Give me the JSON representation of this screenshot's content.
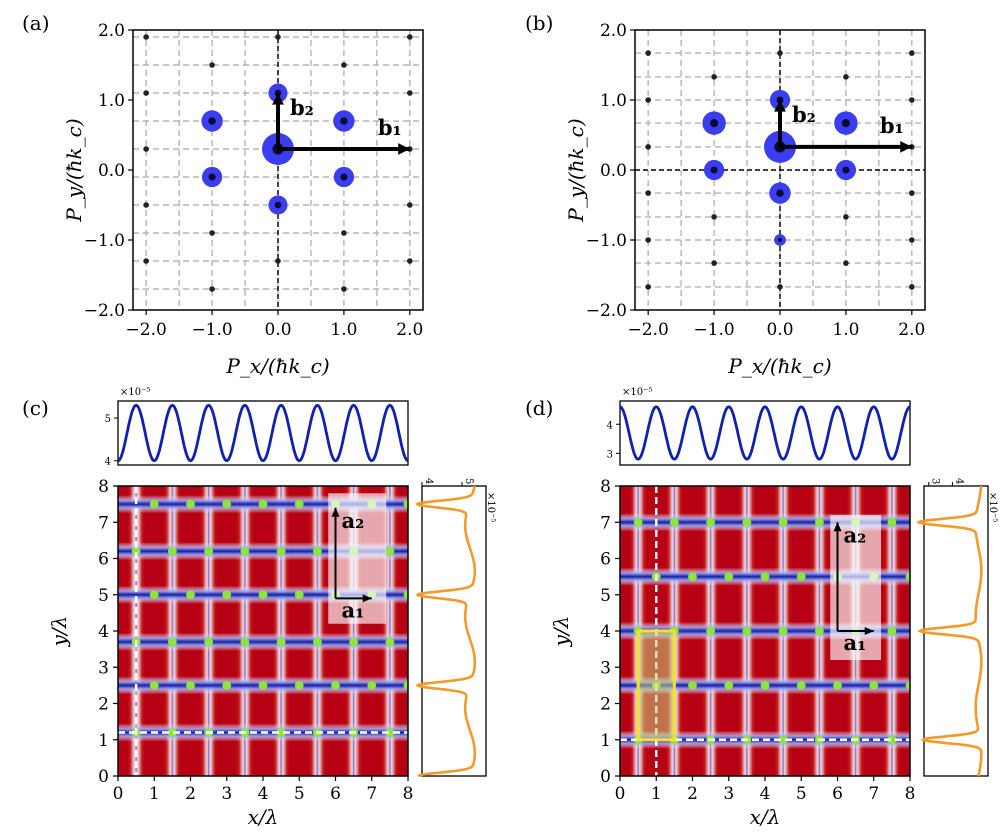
{
  "panels": {
    "a": "(a)",
    "b": "(b)",
    "c": "(c)",
    "d": "(d)"
  },
  "chart_data": [
    {
      "id": "a",
      "type": "scatter",
      "xlabel": "P_x/(ħk_c)",
      "ylabel": "P_y/(ħk_c)",
      "xlim": [
        -2.2,
        2.2
      ],
      "ylim": [
        -2.0,
        2.0
      ],
      "xticks": [
        "−2.0",
        "−1.0",
        "0.0",
        "1.0",
        "2.0"
      ],
      "yticks": [
        "−2.0",
        "−1.0",
        "0.0",
        "1.0",
        "2.0"
      ],
      "grid": true,
      "vectors": [
        {
          "label": "b₂",
          "from": [
            0,
            0.3
          ],
          "to": [
            0,
            1.1
          ]
        },
        {
          "label": "b₁",
          "from": [
            0,
            0.3
          ],
          "to": [
            2,
            0.3
          ]
        }
      ],
      "points": [
        {
          "x": 0,
          "y": 0.3,
          "weight": 1.0
        },
        {
          "x": -1,
          "y": 0.7,
          "weight": 0.35
        },
        {
          "x": 1,
          "y": 0.7,
          "weight": 0.35
        },
        {
          "x": -1,
          "y": -0.1,
          "weight": 0.3
        },
        {
          "x": 1,
          "y": -0.1,
          "weight": 0.3
        },
        {
          "x": 0,
          "y": 1.1,
          "weight": 0.25
        },
        {
          "x": 0,
          "y": -0.5,
          "weight": 0.25
        },
        {
          "x": -1,
          "y": -0.9,
          "weight": 0.12
        },
        {
          "x": 1,
          "y": -0.9,
          "weight": 0.12
        },
        {
          "x": 0,
          "y": -1.3,
          "weight": 0.1
        },
        {
          "x": 0,
          "y": 1.9,
          "weight": 0.08
        },
        {
          "x": -1,
          "y": 1.5,
          "weight": 0.08
        },
        {
          "x": 1,
          "y": 1.5,
          "weight": 0.08
        },
        {
          "x": -1,
          "y": -1.7,
          "weight": 0.08
        },
        {
          "x": 1,
          "y": -1.7,
          "weight": 0.08
        },
        {
          "x": -2,
          "y": 1.9,
          "weight": 0.07
        },
        {
          "x": 2,
          "y": 1.9,
          "weight": 0.07
        },
        {
          "x": -2,
          "y": 1.1,
          "weight": 0.07
        },
        {
          "x": 2,
          "y": 1.1,
          "weight": 0.07
        },
        {
          "x": -2,
          "y": 0.3,
          "weight": 0.07
        },
        {
          "x": 2,
          "y": 0.3,
          "weight": 0.07
        },
        {
          "x": -2,
          "y": -0.5,
          "weight": 0.07
        },
        {
          "x": 2,
          "y": -0.5,
          "weight": 0.07
        },
        {
          "x": -2,
          "y": -1.3,
          "weight": 0.07
        },
        {
          "x": 2,
          "y": -1.3,
          "weight": 0.07
        }
      ]
    },
    {
      "id": "b",
      "type": "scatter",
      "xlabel": "P_x/(ħk_c)",
      "ylabel": "P_y/(ħk_c)",
      "xlim": [
        -2.2,
        2.2
      ],
      "ylim": [
        -2.0,
        2.0
      ],
      "xticks": [
        "−2.0",
        "−1.0",
        "0.0",
        "1.0",
        "2.0"
      ],
      "yticks": [
        "−2.0",
        "−1.0",
        "0.0",
        "1.0",
        "2.0"
      ],
      "grid": true,
      "vectors": [
        {
          "label": "b₂",
          "from": [
            0,
            0.33
          ],
          "to": [
            0,
            1.0
          ]
        },
        {
          "label": "b₁",
          "from": [
            0,
            0.33
          ],
          "to": [
            2,
            0.33
          ]
        }
      ],
      "points": [
        {
          "x": 0,
          "y": 0.33,
          "weight": 1.0
        },
        {
          "x": -1,
          "y": 0.67,
          "weight": 0.45
        },
        {
          "x": 1,
          "y": 0.67,
          "weight": 0.45
        },
        {
          "x": 0,
          "y": -0.33,
          "weight": 0.35
        },
        {
          "x": 0,
          "y": 1.0,
          "weight": 0.3
        },
        {
          "x": -1,
          "y": 0.0,
          "weight": 0.3
        },
        {
          "x": 1,
          "y": 0.0,
          "weight": 0.3
        },
        {
          "x": 0,
          "y": -1.0,
          "weight": 0.2
        },
        {
          "x": -1,
          "y": -0.67,
          "weight": 0.15
        },
        {
          "x": 1,
          "y": -0.67,
          "weight": 0.15
        },
        {
          "x": -1,
          "y": 1.33,
          "weight": 0.1
        },
        {
          "x": 1,
          "y": 1.33,
          "weight": 0.1
        },
        {
          "x": 0,
          "y": 1.67,
          "weight": 0.1
        },
        {
          "x": 0,
          "y": -1.67,
          "weight": 0.1
        },
        {
          "x": -1,
          "y": -1.33,
          "weight": 0.08
        },
        {
          "x": 1,
          "y": -1.33,
          "weight": 0.08
        },
        {
          "x": -2,
          "y": 1.67,
          "weight": 0.06
        },
        {
          "x": 2,
          "y": 1.67,
          "weight": 0.06
        },
        {
          "x": -2,
          "y": 1.0,
          "weight": 0.06
        },
        {
          "x": 2,
          "y": 1.0,
          "weight": 0.06
        },
        {
          "x": -2,
          "y": 0.33,
          "weight": 0.06
        },
        {
          "x": 2,
          "y": 0.33,
          "weight": 0.06
        },
        {
          "x": -2,
          "y": -0.33,
          "weight": 0.06
        },
        {
          "x": 2,
          "y": -0.33,
          "weight": 0.06
        },
        {
          "x": -2,
          "y": -1.0,
          "weight": 0.06
        },
        {
          "x": 2,
          "y": -1.0,
          "weight": 0.06
        },
        {
          "x": -2,
          "y": -1.67,
          "weight": 0.06
        },
        {
          "x": 2,
          "y": -1.67,
          "weight": 0.06
        }
      ]
    },
    {
      "id": "c",
      "type": "heatmap",
      "xlabel": "x/λ",
      "ylabel": "y/λ",
      "xlim": [
        0,
        8
      ],
      "ylim": [
        0,
        8
      ],
      "xticks": [
        "0",
        "1",
        "2",
        "3",
        "4",
        "5",
        "6",
        "7",
        "8"
      ],
      "yticks": [
        "0",
        "1",
        "2",
        "3",
        "4",
        "5",
        "6",
        "7",
        "8"
      ],
      "period_x": 1.0,
      "period_y": 2.5,
      "blue_band_y": [
        1.2,
        2.5,
        3.7,
        5.0,
        6.2,
        7.5
      ],
      "dots_y": [
        1.2,
        2.5,
        3.7,
        5.0,
        6.2,
        7.5
      ],
      "cut_x": 0.5,
      "cut_y": 1.2,
      "vectors": [
        {
          "label": "a₁"
        },
        {
          "label": "a₂"
        }
      ],
      "top_profile": {
        "scale": "×10⁻⁵",
        "ylim": [
          3.9,
          5.4
        ],
        "yticks": [
          "4",
          "5"
        ],
        "min": 4.0,
        "max": 5.3,
        "periods": 8
      },
      "side_profile": {
        "scale": "×10⁻⁵",
        "xlim": [
          4,
          5.6
        ],
        "xticks": [
          "4",
          "5"
        ],
        "peaks_y": [
          0.0,
          2.5,
          5.0,
          7.5
        ]
      }
    },
    {
      "id": "d",
      "type": "heatmap",
      "xlabel": "x/λ",
      "ylabel": "y/λ",
      "xlim": [
        0,
        8
      ],
      "ylim": [
        0,
        8
      ],
      "xticks": [
        "0",
        "1",
        "2",
        "3",
        "4",
        "5",
        "6",
        "7",
        "8"
      ],
      "yticks": [
        "0",
        "1",
        "2",
        "3",
        "4",
        "5",
        "6",
        "7",
        "8"
      ],
      "period_x": 1.0,
      "period_y": 3.0,
      "blue_band_y": [
        1.0,
        2.5,
        4.0,
        5.5,
        7.0
      ],
      "dots_y": [
        1.0,
        2.5,
        4.0,
        5.5,
        7.0
      ],
      "cut_x": 1.0,
      "cut_y": 1.0,
      "unit_cell": {
        "x0": 0.5,
        "x1": 1.5,
        "y0": 1.0,
        "y1": 4.0
      },
      "vectors": [
        {
          "label": "a₁"
        },
        {
          "label": "a₂"
        }
      ],
      "top_profile": {
        "scale": "×10⁻⁵",
        "ylim": [
          2.6,
          4.8
        ],
        "yticks": [
          "3",
          "4"
        ],
        "min": 2.8,
        "max": 4.6,
        "periods": 8
      },
      "side_profile": {
        "scale": "×10⁻⁵",
        "xlim": [
          2.8,
          5.5
        ],
        "xticks": [
          "3",
          "4"
        ],
        "peaks_y": [
          1.0,
          4.0,
          7.0
        ]
      }
    }
  ]
}
